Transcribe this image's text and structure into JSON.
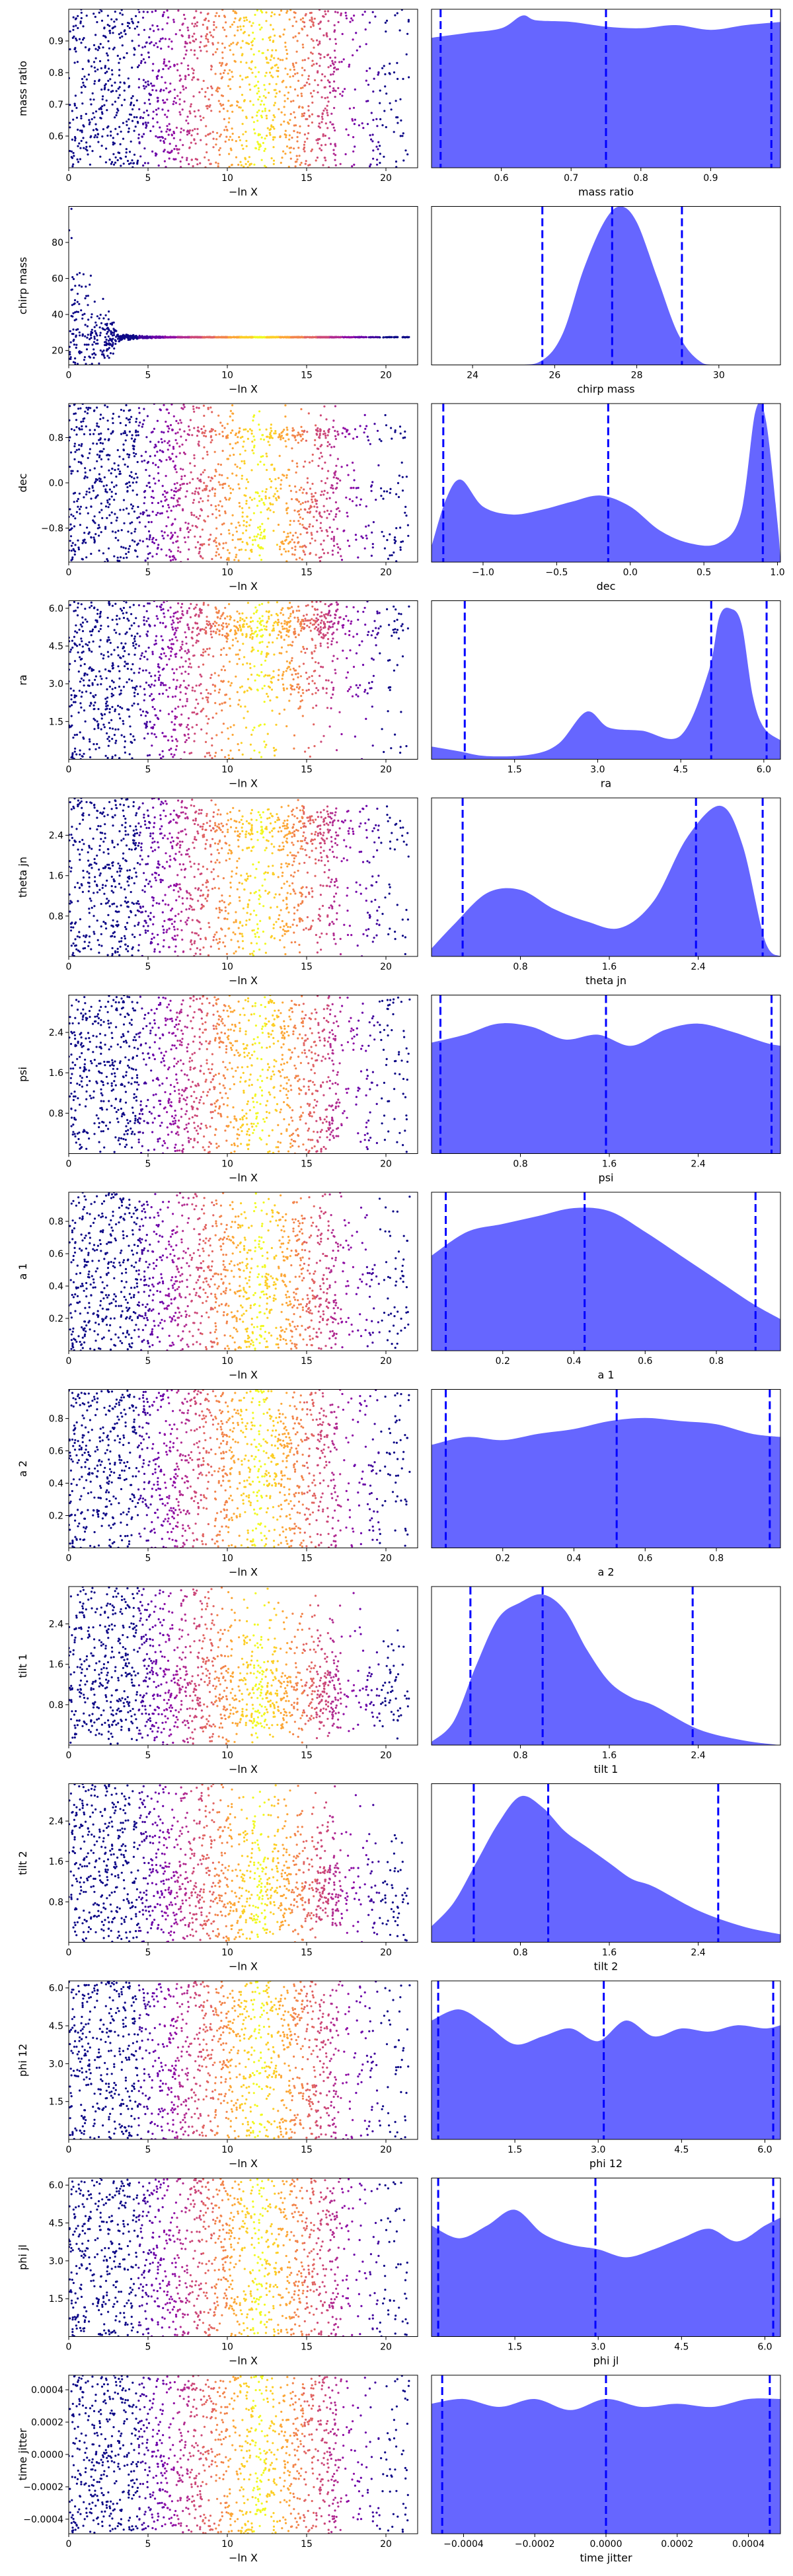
{
  "figure": {
    "background": "#ffffff",
    "scatter_colormap": [
      "#0d0887",
      "#41049d",
      "#6a00a8",
      "#8f0da4",
      "#b12a90",
      "#cc4778",
      "#e16462",
      "#f2844b",
      "#fca636",
      "#fcce25",
      "#f0f921"
    ],
    "kde_fill_color": "#6666ff",
    "kde_line_color": "#0000ff",
    "quantile_line_color": "#0000ff",
    "median_line_color": "#0000ff"
  },
  "chart_data": [
    {
      "type": "scatter",
      "xlabel": "−ln X",
      "ylabel": "mass ratio",
      "xticks": [
        "0",
        "5",
        "10",
        "15",
        "20"
      ],
      "yticks": [
        "0.6",
        "0.7",
        "0.8",
        "0.9"
      ],
      "xlim": [
        0,
        22
      ],
      "ylim": [
        0.5,
        1.0
      ],
      "grid": false
    },
    {
      "type": "area",
      "xlabel": "mass ratio",
      "ylabel": "",
      "xticks": [
        "0.6",
        "0.7",
        "0.8",
        "0.9"
      ],
      "xlim": [
        0.5,
        1.0
      ],
      "x": [
        0.5,
        0.55,
        0.6,
        0.63,
        0.65,
        0.7,
        0.75,
        0.8,
        0.85,
        0.9,
        0.95,
        1.0
      ],
      "density": [
        0.82,
        0.85,
        0.88,
        0.96,
        0.93,
        0.92,
        0.89,
        0.88,
        0.9,
        0.87,
        0.9,
        0.92
      ],
      "quantiles": [
        0.513,
        0.75,
        0.987
      ]
    },
    {
      "type": "scatter",
      "xlabel": "−ln X",
      "ylabel": "chirp mass",
      "xticks": [
        "0",
        "5",
        "10",
        "15",
        "20"
      ],
      "yticks": [
        "20",
        "40",
        "60",
        "80"
      ],
      "xlim": [
        0,
        22
      ],
      "ylim": [
        12,
        100
      ],
      "grid": false
    },
    {
      "type": "area",
      "xlabel": "chirp mass",
      "ylabel": "",
      "xticks": [
        "24",
        "26",
        "28",
        "30"
      ],
      "xlim": [
        23.0,
        31.5
      ],
      "x": [
        23.0,
        25.0,
        25.7,
        26.2,
        26.7,
        27.2,
        27.6,
        28.0,
        28.5,
        29.0,
        29.5,
        30.0,
        31.5
      ],
      "density": [
        0.0,
        0.0,
        0.03,
        0.2,
        0.6,
        0.9,
        1.0,
        0.9,
        0.55,
        0.2,
        0.03,
        0.0,
        0.0
      ],
      "quantiles": [
        25.7,
        27.4,
        29.1
      ]
    },
    {
      "type": "scatter",
      "xlabel": "−ln X",
      "ylabel": "dec",
      "xticks": [
        "0",
        "5",
        "10",
        "15",
        "20"
      ],
      "yticks": [
        "−0.8",
        "0.0",
        "0.8"
      ],
      "xlim": [
        0,
        22
      ],
      "ylim": [
        -1.4,
        1.4
      ],
      "grid": false
    },
    {
      "type": "area",
      "xlabel": "dec",
      "ylabel": "",
      "xticks": [
        "−1.0",
        "−0.5",
        "0.0",
        "0.5",
        "1.0"
      ],
      "xlim": [
        -1.35,
        1.02
      ],
      "x": [
        -1.35,
        -1.25,
        -1.15,
        -1.0,
        -0.8,
        -0.6,
        -0.4,
        -0.2,
        0.0,
        0.2,
        0.4,
        0.6,
        0.75,
        0.85,
        0.92,
        1.0,
        1.02
      ],
      "density": [
        0.1,
        0.4,
        0.52,
        0.35,
        0.3,
        0.33,
        0.38,
        0.42,
        0.35,
        0.2,
        0.12,
        0.12,
        0.3,
        0.95,
        0.9,
        0.25,
        0.0
      ],
      "quantiles": [
        -1.27,
        -0.15,
        0.9
      ]
    },
    {
      "type": "scatter",
      "xlabel": "−ln X",
      "ylabel": "ra",
      "xticks": [
        "0",
        "5",
        "10",
        "15",
        "20"
      ],
      "yticks": [
        "1.5",
        "3.0",
        "4.5",
        "6.0"
      ],
      "xlim": [
        0,
        22
      ],
      "ylim": [
        0,
        6.3
      ],
      "grid": false
    },
    {
      "type": "area",
      "xlabel": "ra",
      "ylabel": "",
      "xticks": [
        "1.5",
        "3.0",
        "4.5",
        "6.0"
      ],
      "xlim": [
        0,
        6.3
      ],
      "x": [
        0,
        0.5,
        1.0,
        1.8,
        2.3,
        2.8,
        3.2,
        3.8,
        4.5,
        5.0,
        5.2,
        5.4,
        5.6,
        5.8,
        6.0,
        6.3
      ],
      "density": [
        0.08,
        0.05,
        0.02,
        0.03,
        0.1,
        0.3,
        0.2,
        0.18,
        0.15,
        0.55,
        0.9,
        0.95,
        0.85,
        0.4,
        0.2,
        0.12
      ],
      "quantiles": [
        0.6,
        5.05,
        6.05
      ]
    },
    {
      "type": "scatter",
      "xlabel": "−ln X",
      "ylabel": "theta jn",
      "xticks": [
        "0",
        "5",
        "10",
        "15",
        "20"
      ],
      "yticks": [
        "0.8",
        "1.6",
        "2.4"
      ],
      "xlim": [
        0,
        22
      ],
      "ylim": [
        0,
        3.14
      ],
      "grid": false
    },
    {
      "type": "area",
      "xlabel": "theta jn",
      "ylabel": "",
      "xticks": [
        "0.8",
        "1.6",
        "2.4"
      ],
      "xlim": [
        0,
        3.14
      ],
      "x": [
        0,
        0.2,
        0.5,
        0.8,
        1.1,
        1.4,
        1.7,
        2.0,
        2.3,
        2.6,
        2.8,
        3.0,
        3.14
      ],
      "density": [
        0.05,
        0.2,
        0.4,
        0.42,
        0.3,
        0.22,
        0.18,
        0.35,
        0.75,
        0.95,
        0.7,
        0.1,
        0.0
      ],
      "quantiles": [
        0.28,
        2.38,
        2.98
      ]
    },
    {
      "type": "scatter",
      "xlabel": "−ln X",
      "ylabel": "psi",
      "xticks": [
        "0",
        "5",
        "10",
        "15",
        "20"
      ],
      "yticks": [
        "0.8",
        "1.6",
        "2.4"
      ],
      "xlim": [
        0,
        22
      ],
      "ylim": [
        0,
        3.14
      ],
      "grid": false
    },
    {
      "type": "area",
      "xlabel": "psi",
      "ylabel": "",
      "xticks": [
        "0.8",
        "1.6",
        "2.4"
      ],
      "xlim": [
        0,
        3.14
      ],
      "x": [
        0,
        0.3,
        0.6,
        0.9,
        1.2,
        1.5,
        1.8,
        2.1,
        2.4,
        2.7,
        3.0,
        3.14
      ],
      "density": [
        0.7,
        0.75,
        0.82,
        0.8,
        0.72,
        0.75,
        0.68,
        0.78,
        0.82,
        0.77,
        0.7,
        0.68
      ],
      "quantiles": [
        0.08,
        1.57,
        3.06
      ]
    },
    {
      "type": "scatter",
      "xlabel": "−ln X",
      "ylabel": "a 1",
      "xticks": [
        "0",
        "5",
        "10",
        "15",
        "20"
      ],
      "yticks": [
        "0.2",
        "0.4",
        "0.6",
        "0.8"
      ],
      "xlim": [
        0,
        22
      ],
      "ylim": [
        0,
        0.98
      ],
      "grid": false
    },
    {
      "type": "area",
      "xlabel": "a 1",
      "ylabel": "",
      "xticks": [
        "0.2",
        "0.4",
        "0.6",
        "0.8"
      ],
      "xlim": [
        0,
        0.98
      ],
      "x": [
        0,
        0.1,
        0.2,
        0.3,
        0.4,
        0.5,
        0.6,
        0.7,
        0.8,
        0.9,
        0.98
      ],
      "density": [
        0.6,
        0.75,
        0.8,
        0.85,
        0.9,
        0.88,
        0.75,
        0.6,
        0.45,
        0.3,
        0.2
      ],
      "quantiles": [
        0.04,
        0.43,
        0.91
      ]
    },
    {
      "type": "scatter",
      "xlabel": "−ln X",
      "ylabel": "a 2",
      "xticks": [
        "0",
        "5",
        "10",
        "15",
        "20"
      ],
      "yticks": [
        "0.2",
        "0.4",
        "0.6",
        "0.8"
      ],
      "xlim": [
        0,
        22
      ],
      "ylim": [
        0,
        0.98
      ],
      "grid": false
    },
    {
      "type": "area",
      "xlabel": "a 2",
      "ylabel": "",
      "xticks": [
        "0.2",
        "0.4",
        "0.6",
        "0.8"
      ],
      "xlim": [
        0,
        0.98
      ],
      "x": [
        0,
        0.1,
        0.2,
        0.3,
        0.4,
        0.5,
        0.6,
        0.7,
        0.8,
        0.9,
        0.98
      ],
      "density": [
        0.65,
        0.7,
        0.68,
        0.72,
        0.75,
        0.8,
        0.82,
        0.8,
        0.78,
        0.72,
        0.7
      ],
      "quantiles": [
        0.04,
        0.52,
        0.95
      ]
    },
    {
      "type": "scatter",
      "xlabel": "−ln X",
      "ylabel": "tilt 1",
      "xticks": [
        "0",
        "5",
        "10",
        "15",
        "20"
      ],
      "yticks": [
        "0.8",
        "1.6",
        "2.4"
      ],
      "xlim": [
        0,
        22
      ],
      "ylim": [
        0,
        3.14
      ],
      "grid": false
    },
    {
      "type": "area",
      "xlabel": "tilt 1",
      "ylabel": "",
      "xticks": [
        "0.8",
        "1.6",
        "2.4"
      ],
      "xlim": [
        0,
        3.14
      ],
      "x": [
        0,
        0.2,
        0.4,
        0.6,
        0.8,
        1.0,
        1.2,
        1.4,
        1.6,
        1.8,
        2.0,
        2.4,
        2.8,
        3.14
      ],
      "density": [
        0.02,
        0.15,
        0.5,
        0.8,
        0.9,
        0.95,
        0.85,
        0.6,
        0.4,
        0.3,
        0.25,
        0.1,
        0.03,
        0.0
      ],
      "quantiles": [
        0.35,
        1.0,
        2.35
      ]
    },
    {
      "type": "scatter",
      "xlabel": "−ln X",
      "ylabel": "tilt 2",
      "xticks": [
        "0",
        "5",
        "10",
        "15",
        "20"
      ],
      "yticks": [
        "0.8",
        "1.6",
        "2.4"
      ],
      "xlim": [
        0,
        22
      ],
      "ylim": [
        0,
        3.14
      ],
      "grid": false
    },
    {
      "type": "area",
      "xlabel": "tilt 2",
      "ylabel": "",
      "xticks": [
        "0.8",
        "1.6",
        "2.4"
      ],
      "xlim": [
        0,
        3.14
      ],
      "x": [
        0,
        0.2,
        0.4,
        0.6,
        0.8,
        1.0,
        1.2,
        1.4,
        1.6,
        1.8,
        2.0,
        2.4,
        2.8,
        3.14
      ],
      "density": [
        0.1,
        0.25,
        0.5,
        0.75,
        0.92,
        0.85,
        0.7,
        0.6,
        0.5,
        0.4,
        0.35,
        0.2,
        0.1,
        0.05
      ],
      "quantiles": [
        0.38,
        1.05,
        2.58
      ]
    },
    {
      "type": "scatter",
      "xlabel": "−ln X",
      "ylabel": "phi 12",
      "xticks": [
        "0",
        "5",
        "10",
        "15",
        "20"
      ],
      "yticks": [
        "1.5",
        "3.0",
        "4.5",
        "6.0"
      ],
      "xlim": [
        0,
        22
      ],
      "ylim": [
        0,
        6.28
      ],
      "grid": false
    },
    {
      "type": "area",
      "xlabel": "phi 12",
      "ylabel": "",
      "xticks": [
        "1.5",
        "3.0",
        "4.5",
        "6.0"
      ],
      "xlim": [
        0,
        6.28
      ],
      "x": [
        0,
        0.5,
        1.0,
        1.5,
        2.0,
        2.5,
        3.0,
        3.5,
        4.0,
        4.5,
        5.0,
        5.5,
        6.0,
        6.28
      ],
      "density": [
        0.75,
        0.82,
        0.72,
        0.6,
        0.65,
        0.7,
        0.62,
        0.75,
        0.65,
        0.7,
        0.68,
        0.72,
        0.7,
        0.72
      ],
      "quantiles": [
        0.12,
        3.1,
        6.15
      ]
    },
    {
      "type": "scatter",
      "xlabel": "−ln X",
      "ylabel": "phi jl",
      "xticks": [
        "0",
        "5",
        "10",
        "15",
        "20"
      ],
      "yticks": [
        "1.5",
        "3.0",
        "4.5",
        "6.0"
      ],
      "xlim": [
        0,
        22
      ],
      "ylim": [
        0,
        6.28
      ],
      "grid": false
    },
    {
      "type": "area",
      "xlabel": "phi jl",
      "ylabel": "",
      "xticks": [
        "1.5",
        "3.0",
        "4.5",
        "6.0"
      ],
      "xlim": [
        0,
        6.28
      ],
      "x": [
        0,
        0.5,
        1.0,
        1.5,
        2.0,
        2.5,
        3.0,
        3.5,
        4.0,
        4.5,
        5.0,
        5.5,
        6.0,
        6.28
      ],
      "density": [
        0.7,
        0.62,
        0.7,
        0.8,
        0.65,
        0.58,
        0.55,
        0.5,
        0.55,
        0.62,
        0.68,
        0.6,
        0.7,
        0.75
      ],
      "quantiles": [
        0.12,
        2.95,
        6.15
      ]
    },
    {
      "type": "scatter",
      "xlabel": "−ln X",
      "ylabel": "time jitter",
      "xticks": [
        "0",
        "5",
        "10",
        "15",
        "20"
      ],
      "yticks": [
        "−0.0004",
        "−0.0002",
        "0.0000",
        "0.0002",
        "0.0004"
      ],
      "xlim": [
        0,
        22
      ],
      "ylim": [
        -0.00049,
        0.00049
      ],
      "grid": false
    },
    {
      "type": "area",
      "xlabel": "time jitter",
      "ylabel": "",
      "xticks": [
        "−0.0004",
        "−0.0002",
        "0.0000",
        "0.0002",
        "0.0004"
      ],
      "xlim": [
        -0.00049,
        0.00049
      ],
      "x": [
        -0.00049,
        -0.0004,
        -0.0003,
        -0.0002,
        -0.0001,
        0.0,
        0.0001,
        0.0002,
        0.0003,
        0.0004,
        0.00049
      ],
      "density": [
        0.82,
        0.85,
        0.8,
        0.85,
        0.78,
        0.85,
        0.8,
        0.82,
        0.8,
        0.85,
        0.85
      ],
      "quantiles": [
        -0.00046,
        0.0,
        0.00046
      ]
    }
  ]
}
